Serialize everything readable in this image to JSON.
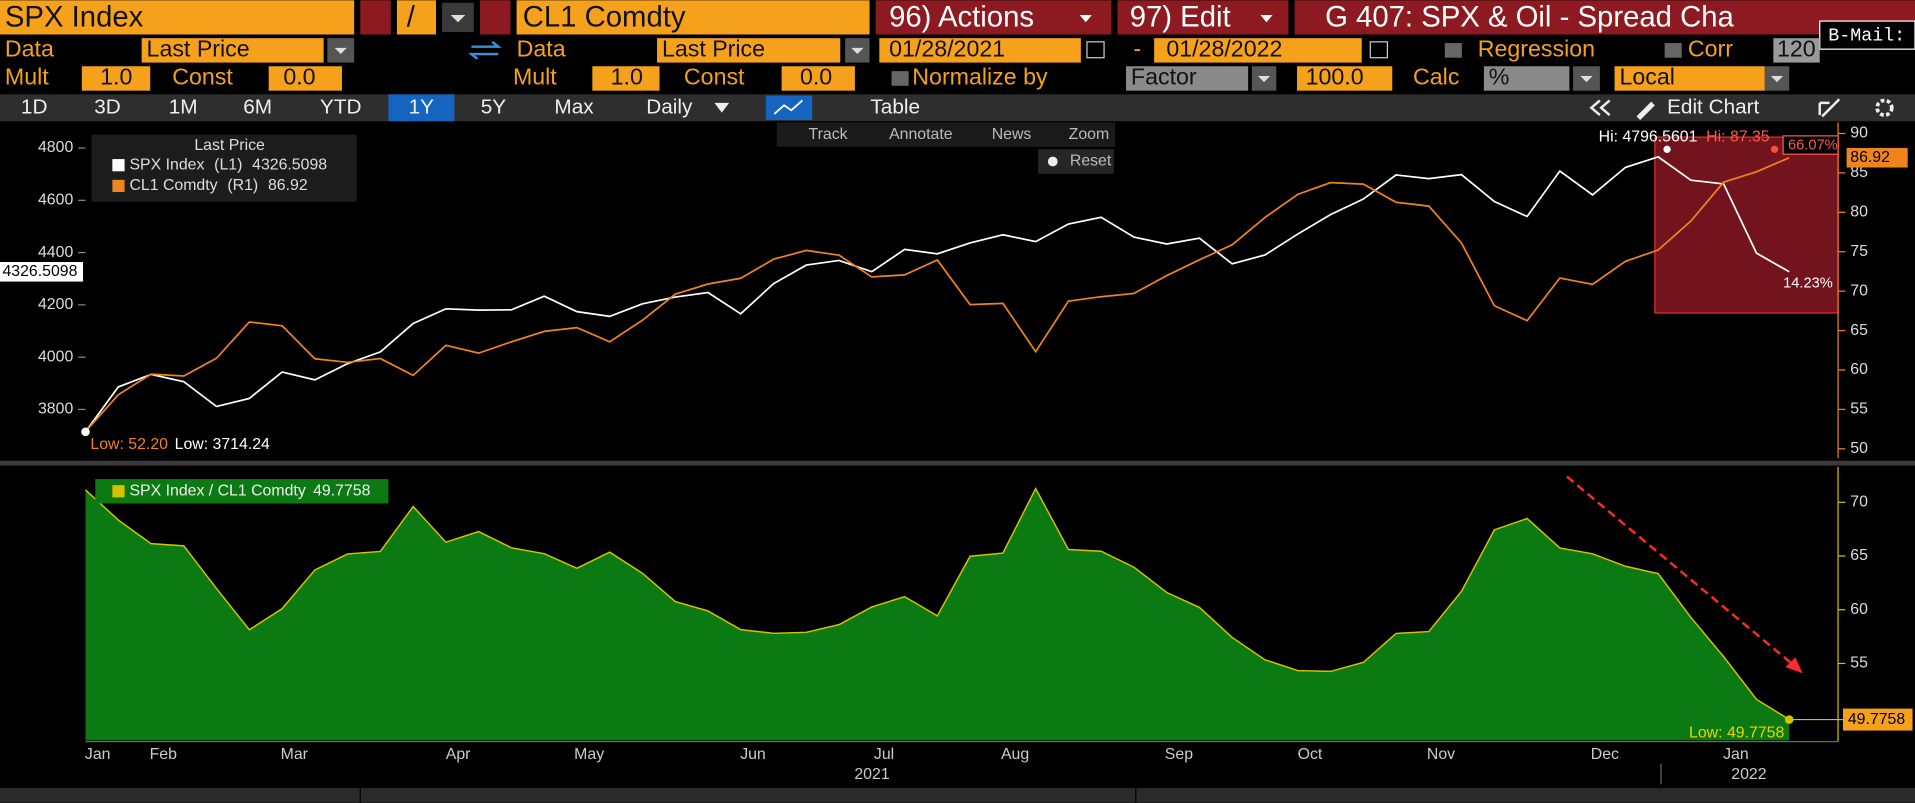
{
  "toolbar": {
    "security1": "SPX Index",
    "operator": "/",
    "security2": "CL1 Comdty",
    "actions": "96) Actions",
    "edit": "97) Edit",
    "title": "G 407: SPX & Oil - Spread Cha",
    "bmail": "B-Mail:"
  },
  "settings": {
    "data_label1": "Data",
    "field1": "Last Price",
    "data_label2": "Data",
    "field2": "Last Price",
    "start_date": "01/28/2021",
    "date_sep": "-",
    "end_date": "01/28/2022",
    "regression": "Regression",
    "corr": "Corr",
    "corr_window": "120"
  },
  "settings2": {
    "mult_label1": "Mult",
    "mult1": "1.0",
    "const_label1": "Const",
    "const1": "0.0",
    "mult_label2": "Mult",
    "mult2": "1.0",
    "const_label2": "Const",
    "const2": "0.0",
    "normalize": "Normalize by",
    "normalize_method": "Factor",
    "factor": "100.0",
    "calc_label": "Calc",
    "calc": "%",
    "currency": "Local"
  },
  "tabs": [
    "1D",
    "3D",
    "1M",
    "6M",
    "YTD",
    "1Y",
    "5Y",
    "Max"
  ],
  "frequency": "Daily",
  "table": "Table",
  "edit_chart": "Edit Chart",
  "chart_tools": [
    "Track",
    "Annotate",
    "News",
    "Zoom"
  ],
  "reset": "Reset",
  "chart_data": [
    {
      "type": "line",
      "legend_title": "Last Price",
      "series": [
        {
          "name": "SPX Index",
          "axis_tag": "(L1)",
          "color": "#ffffff",
          "values": [
            3714.24,
            3886,
            3934,
            3906,
            3811,
            3842,
            3943,
            3913,
            3975,
            4020,
            4129,
            4185,
            4180,
            4181,
            4233,
            4174,
            4156,
            4204,
            4230,
            4247,
            4166,
            4281,
            4352,
            4370,
            4327,
            4412,
            4395,
            4437,
            4468,
            4442,
            4509,
            4535,
            4459,
            4433,
            4455,
            4357,
            4391,
            4471,
            4545,
            4605,
            4697,
            4683,
            4698,
            4595,
            4538,
            4712,
            4621,
            4726,
            4766,
            4677,
            4663,
            4398,
            4326.5098
          ]
        },
        {
          "name": "CL1 Comdty",
          "axis_tag": "(R1)",
          "color": "#f0841c",
          "axis": "y2",
          "values": [
            52.2,
            56.85,
            59.47,
            59.24,
            61.5,
            66.09,
            65.61,
            61.42,
            60.97,
            61.45,
            59.32,
            63.13,
            62.14,
            63.58,
            64.9,
            65.37,
            63.58,
            66.32,
            69.62,
            70.91,
            71.64,
            74.05,
            75.16,
            74.56,
            71.81,
            72.07,
            73.95,
            68.28,
            68.44,
            62.32,
            68.74,
            69.29,
            69.72,
            71.97,
            73.98,
            75.88,
            79.35,
            82.28,
            83.76,
            83.57,
            81.27,
            80.79,
            76.1,
            68.15,
            66.26,
            71.67,
            70.86,
            73.79,
            75.21,
            78.9,
            83.82,
            85.14,
            86.92
          ]
        }
      ],
      "ylim": [
        3613,
        4898
      ],
      "yticks": [
        3800,
        4000,
        4200,
        4400,
        4600,
        4800
      ],
      "y2lim": [
        48.8,
        91.4
      ],
      "y2ticks": [
        50,
        55,
        60,
        65,
        70,
        75,
        80,
        85,
        90
      ],
      "annotations": {
        "hi_spx": "Hi: 4796.5601",
        "hi_cl": "Hi: 87.35",
        "pct_high": "66.07%",
        "pct_low": "14.23%",
        "low_cl": "Low: 52.20",
        "low_spx": "Low: 3714.24"
      }
    },
    {
      "type": "area",
      "categories": [
        "Jan",
        null,
        "Feb",
        null,
        null,
        null,
        "Mar",
        null,
        null,
        null,
        null,
        "Apr",
        null,
        null,
        null,
        "May",
        null,
        null,
        null,
        null,
        "Jun",
        null,
        null,
        null,
        "Jul",
        null,
        null,
        null,
        "Aug",
        null,
        null,
        null,
        null,
        "Sep",
        null,
        null,
        null,
        "Oct",
        null,
        null,
        null,
        "Nov",
        null,
        null,
        null,
        null,
        "Dec",
        null,
        null,
        null,
        "Jan",
        null,
        null
      ],
      "year_labels": [
        "2021",
        "2022"
      ],
      "series": [
        {
          "name": "SPX Index / CL1 Comdty",
          "color": "#0c7a12",
          "line_color": "#d6c200",
          "values": [
            71.15,
            68.36,
            66.15,
            65.94,
            61.97,
            58.13,
            60.1,
            63.71,
            65.2,
            65.42,
            69.61,
            66.29,
            67.27,
            65.76,
            65.22,
            63.85,
            65.37,
            63.39,
            60.76,
            59.89,
            58.15,
            57.81,
            57.9,
            58.61,
            60.26,
            61.22,
            59.43,
            64.98,
            65.28,
            71.28,
            65.6,
            65.45,
            63.96,
            61.6,
            60.22,
            57.42,
            55.34,
            54.34,
            54.26,
            55.1,
            57.79,
            57.97,
            61.73,
            67.43,
            68.49,
            65.75,
            65.21,
            64.05,
            63.37,
            59.28,
            55.63,
            51.66,
            49.7758
          ]
        }
      ],
      "ylim": [
        47.95,
        73.3
      ],
      "yticks": [
        55,
        60,
        65,
        70
      ],
      "annotations": {
        "low": "Low: 49.7758"
      }
    }
  ]
}
